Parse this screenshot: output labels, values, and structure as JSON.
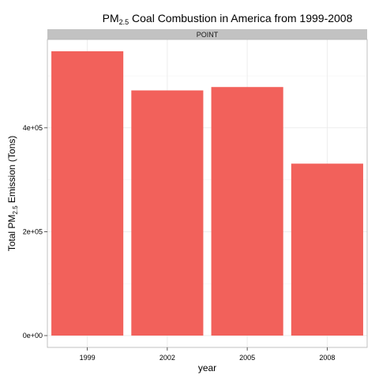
{
  "chart_data": {
    "type": "bar",
    "title_main": "PM",
    "title_sub": "2.5",
    "title_rest": " Coal Combustion in America from 1999-2008",
    "facet_label": "POINT",
    "xlabel": "year",
    "ylabel_main": "Total PM",
    "ylabel_sub": "2.5",
    "ylabel_rest": " Emission (Tons)",
    "categories": [
      "1999",
      "2002",
      "2005",
      "2008"
    ],
    "values": [
      547380,
      472000,
      478500,
      331000
    ],
    "ylim": [
      0,
      575000
    ],
    "yticks": [
      0,
      200000,
      400000
    ],
    "ytick_labels": [
      "0e+00",
      "2e+05",
      "4e+05"
    ],
    "grid": true,
    "colors": {
      "bar": "#f2615b",
      "strip": "#c2c2c2",
      "grid_major": "#ebebeb",
      "grid_minor": "#f5f5f5",
      "panel_border": "#b3b3b3"
    }
  }
}
